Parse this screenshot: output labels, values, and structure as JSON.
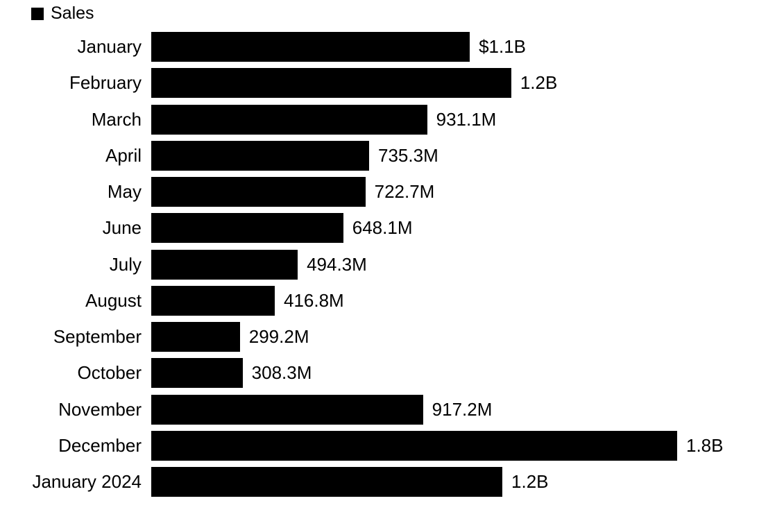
{
  "chart_data": {
    "type": "bar",
    "orientation": "horizontal",
    "legend_label": "Sales",
    "legend_position": "top-left",
    "bar_color": "#000000",
    "grid": false,
    "categories": [
      "January",
      "February",
      "March",
      "April",
      "May",
      "June",
      "July",
      "August",
      "September",
      "October",
      "November",
      "December",
      "January 2024"
    ],
    "values_millions": [
      1075,
      1215,
      931.1,
      735.3,
      722.7,
      648.1,
      494.3,
      416.8,
      299.2,
      308.3,
      917.2,
      1775,
      1185
    ],
    "value_labels": [
      "$1.1B",
      "1.2B",
      "931.1M",
      "735.3M",
      "722.7M",
      "648.1M",
      "494.3M",
      "416.8M",
      "299.2M",
      "308.3M",
      "917.2M",
      "1.8B",
      "1.2B"
    ],
    "xlim_millions": [
      0,
      1775
    ],
    "value_label_position": "end-of-bar"
  }
}
